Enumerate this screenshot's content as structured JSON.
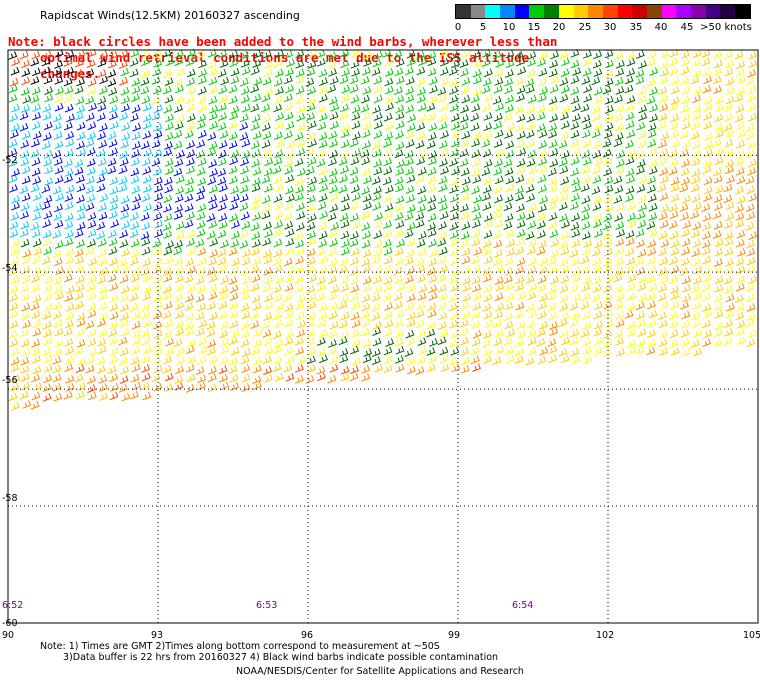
{
  "title": "Rapidscat Winds(12.5KM) 20160327 ascending",
  "note": {
    "line1": "Note: black circles have been added to the wind barbs, wherever less than",
    "line2": "optimal wind retrieval conditions are met due to the ISS altitude changes."
  },
  "legend": {
    "colors": [
      "#333333",
      "#888888",
      "#00ffff",
      "#0088ff",
      "#0000ff",
      "#00cc00",
      "#008000",
      "#ffff00",
      "#ffcc00",
      "#ff8800",
      "#ff4400",
      "#ff0000",
      "#cc0000",
      "#884400",
      "#ff00ff",
      "#aa00ff",
      "#8800aa",
      "#440088",
      "#220044",
      "#000000"
    ],
    "ticks": [
      "0",
      "5",
      "10",
      "15",
      "20",
      "25",
      "30",
      "35",
      "40",
      "45",
      ">50 knots"
    ]
  },
  "axes": {
    "lon_labels": [
      "90",
      "93",
      "96",
      "99",
      "102",
      "105"
    ],
    "lat_labels": [
      "-52",
      "-54",
      "-56",
      "-58",
      "-60"
    ],
    "time_labels": [
      "6:52",
      "6:53",
      "6:54"
    ]
  },
  "bottom_note": {
    "line1": "Note: 1) Times are GMT 2)Times along bottom correspond to measurement at ~50S",
    "line2": "3)Data buffer is 22 hrs from 20160327 4) Black wind barbs indicate possible contamination"
  },
  "footer": "NOAA/NESDIS/Center for Satellite Applications and Research",
  "map_data": {
    "lon_range": [
      90,
      105
    ],
    "lat_range": [
      -60,
      -50.2
    ],
    "grid_lons": [
      93,
      96,
      99,
      102
    ],
    "grid_lats": [
      -52,
      -54,
      -56,
      -58
    ],
    "barb_speed_colors": {
      "calm": "#000000",
      "light": "#00ccff",
      "moderate_blue": "#0000ff",
      "fresh": "#00cc00",
      "strong": "#006600",
      "gale": "#ffff00",
      "strong_gale": "#ffcc00",
      "storm": "#ff8800",
      "violent": "#ff4400"
    }
  }
}
